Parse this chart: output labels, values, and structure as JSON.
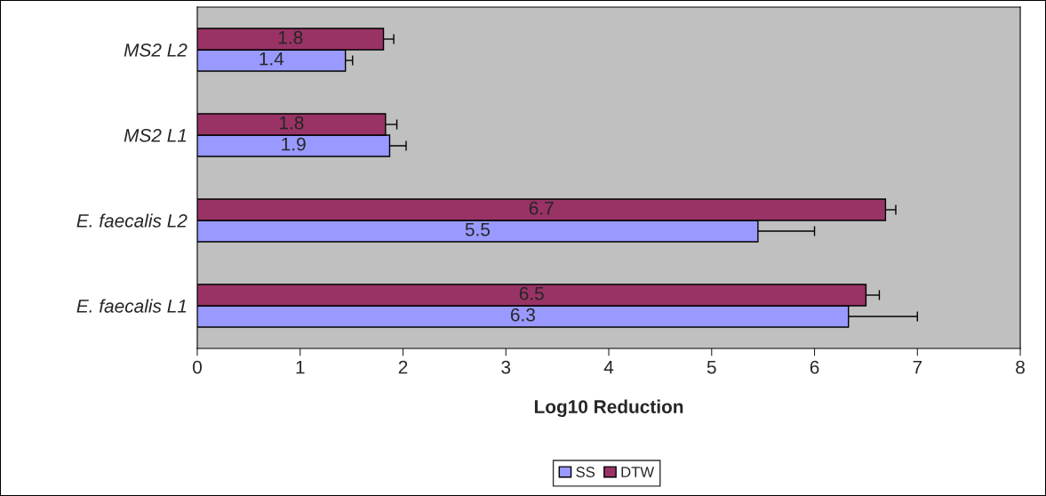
{
  "chart_data": {
    "type": "bar",
    "orientation": "horizontal",
    "categories": [
      "MS2 L2",
      "MS2 L1",
      "E. faecalis L2",
      "E. faecalis L1"
    ],
    "series": [
      {
        "name": "SS",
        "color": "#9999ff",
        "values": [
          1.44,
          1.87,
          5.45,
          6.33
        ],
        "value_labels": [
          "1.4",
          "1.9",
          "5.5",
          "6.3"
        ],
        "errors": [
          0.07,
          0.16,
          0.55,
          0.67
        ]
      },
      {
        "name": "DTW",
        "color": "#993366",
        "values": [
          1.81,
          1.83,
          6.69,
          6.5
        ],
        "value_labels": [
          "1.8",
          "1.8",
          "6.7",
          "6.5"
        ],
        "errors": [
          0.1,
          0.11,
          0.1,
          0.13
        ]
      }
    ],
    "xlim": [
      0,
      8
    ],
    "xticks": [
      0,
      1,
      2,
      3,
      4,
      5,
      6,
      7,
      8
    ],
    "xlabel": "Log10 Reduction",
    "grid": false,
    "legend": "bottom"
  }
}
